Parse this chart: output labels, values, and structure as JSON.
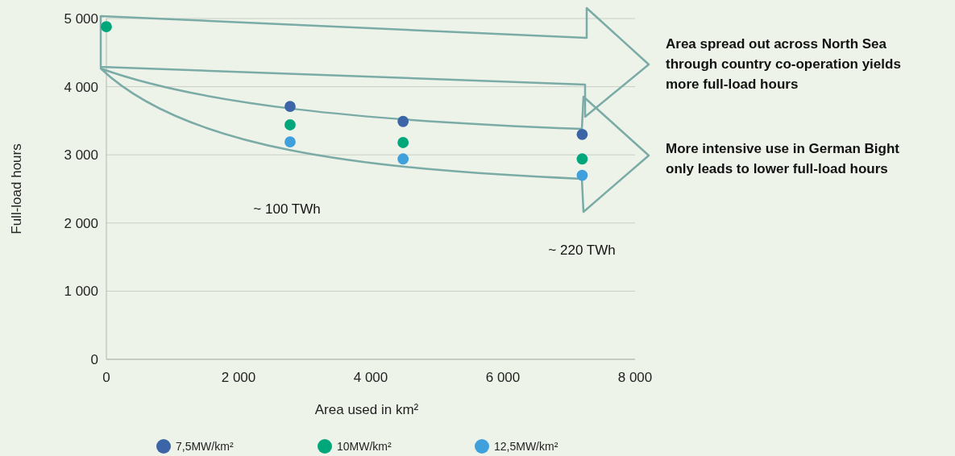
{
  "chart_data": {
    "type": "scatter",
    "xlabel": "Area used in km²",
    "ylabel": "Full-load hours",
    "xlim": [
      0,
      8000
    ],
    "xticks": [
      0,
      {
        "value": 2000,
        "label": "2 000"
      },
      {
        "value": 4000,
        "label": "4 000"
      },
      {
        "value": 6000,
        "label": "6 000"
      },
      {
        "value": 8000,
        "label": "8 000"
      }
    ],
    "ylim": [
      0,
      5000
    ],
    "yticks": [
      0,
      {
        "value": 1000,
        "label": "1 000"
      },
      {
        "value": 2000,
        "label": "2 000"
      },
      {
        "value": 3000,
        "label": "3 000"
      },
      {
        "value": 4000,
        "label": "4 000"
      },
      {
        "value": 5000,
        "label": "5 000"
      }
    ],
    "grid": "y",
    "legend": "bottom",
    "marker": "circle",
    "series": [
      {
        "name": "7,5MW/km²",
        "color": "#3b65a6",
        "x": [
          2780,
          4490,
          7200
        ],
        "values": [
          3710,
          3490,
          3300
        ]
      },
      {
        "name": "10MW/km²",
        "color": "#00a77a",
        "x": [
          0,
          2780,
          4490,
          7200
        ],
        "values": [
          4880,
          3440,
          3180,
          2940
        ]
      },
      {
        "name": "12,5MW/km²",
        "color": "#3fa0dc",
        "x": [
          2780,
          4490,
          7200
        ],
        "values": [
          3190,
          2940,
          2700
        ]
      }
    ],
    "annotations": [
      "Area spread out across North Sea through country co-operation yields more full-load hours",
      "More intensive use in German Bight only leads to lower full-load hours",
      "~ 100 TWh",
      "~ 220 TWh"
    ]
  }
}
